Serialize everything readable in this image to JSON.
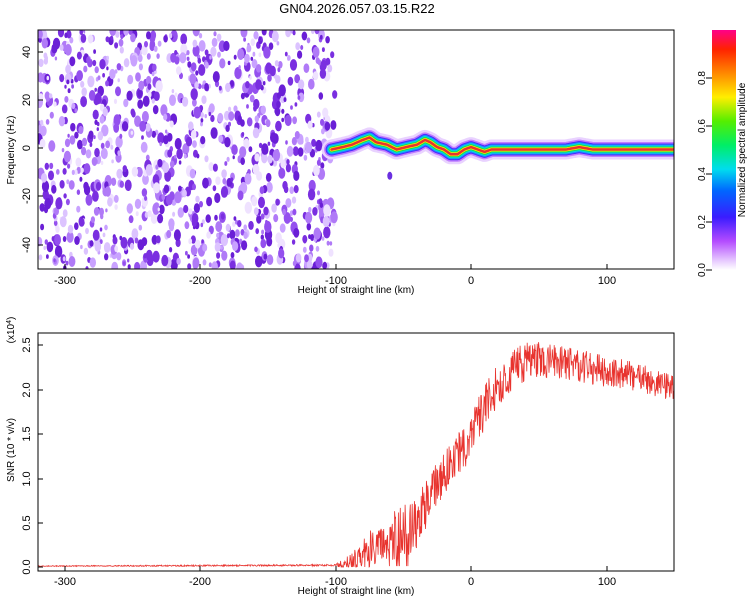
{
  "figure_title": "GN04.2026.057.03.15.R22",
  "colors": {
    "line": "#e8332e",
    "speckle": "#7a2fe0",
    "axis": "#000000"
  },
  "chart_data": [
    {
      "type": "heatmap",
      "title": "GN04.2026.057.03.15.R22",
      "xlabel": "Height of straight line (km)",
      "ylabel": "Frequency (Hz)",
      "xlim": [
        -320,
        150
      ],
      "ylim": [
        -50,
        50
      ],
      "xticks": [
        "-300",
        "-200",
        "-100",
        "0",
        "100"
      ],
      "yticks": [
        "-40",
        "-20",
        "0",
        "20",
        "40"
      ],
      "noise_region_x": [
        -320,
        -100
      ],
      "ridge": {
        "x": [
          -103,
          -95,
          -88,
          -80,
          -75,
          -70,
          -62,
          -55,
          -48,
          -40,
          -34,
          -30,
          -25,
          -20,
          -15,
          -10,
          -5,
          0,
          5,
          10,
          15,
          30,
          50,
          70,
          80,
          90,
          100,
          110,
          120,
          130,
          140,
          150
        ],
        "y": [
          0,
          1,
          2,
          4,
          5,
          3,
          2,
          0,
          1,
          2,
          4,
          3,
          1,
          0,
          -2,
          -2,
          0,
          1,
          0,
          -1,
          0,
          0,
          0,
          0,
          1,
          0,
          0,
          0,
          0,
          0,
          0,
          0
        ]
      },
      "colorbar": {
        "label": "Normalized spectral amplitude",
        "range": [
          0,
          1
        ],
        "ticks": [
          "0.0",
          "0.2",
          "0.4",
          "0.6",
          "0.8"
        ]
      }
    },
    {
      "type": "line",
      "xlabel": "Height of straight line (km)",
      "ylabel": "SNR (10 * v/v)",
      "scale_label_base": "(x10",
      "scale_label_exp": "4",
      "scale_label_close": ")",
      "xlim": [
        -320,
        150
      ],
      "ylim": [
        0,
        2.65
      ],
      "xticks": [
        "-300",
        "-200",
        "-100",
        "0",
        "100"
      ],
      "yticks": [
        "0.0",
        "0.5",
        "1.0",
        "1.5",
        "2.0",
        "2.5"
      ],
      "trend": {
        "x": [
          -320,
          -100,
          -85,
          -75,
          -65,
          -50,
          -42,
          -35,
          -25,
          -15,
          -5,
          0,
          10,
          20,
          30,
          40,
          50,
          60,
          70,
          80,
          100,
          120,
          140,
          150
        ],
        "y": [
          0.01,
          0.02,
          0.05,
          0.2,
          0.3,
          0.4,
          0.45,
          0.65,
          0.95,
          1.15,
          1.35,
          1.5,
          1.8,
          2.05,
          2.2,
          2.3,
          2.35,
          2.33,
          2.3,
          2.27,
          2.2,
          2.15,
          2.05,
          2.0
        ]
      },
      "noise_amplitude": {
        "x": [
          -320,
          -100,
          -80,
          -50,
          -20,
          20,
          60,
          150
        ],
        "y": [
          0.005,
          0.01,
          0.2,
          0.3,
          0.25,
          0.25,
          0.2,
          0.15
        ]
      }
    }
  ]
}
